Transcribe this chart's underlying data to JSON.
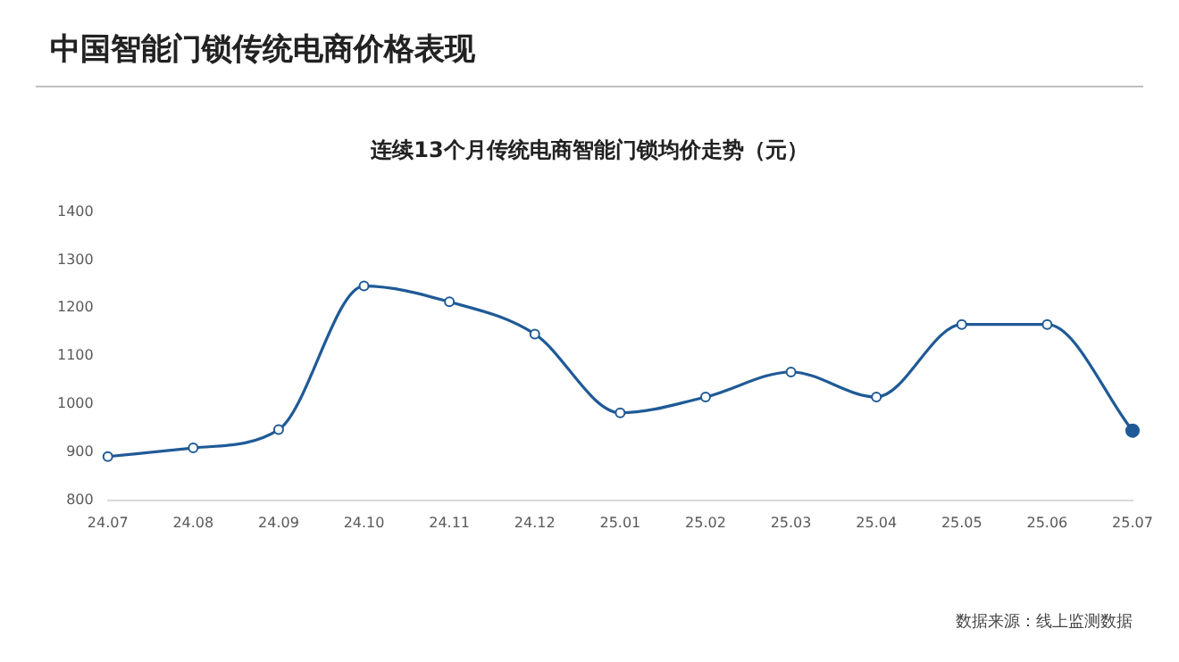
{
  "chart_data": {
    "type": "line",
    "title": "中国智能门锁传统电商价格表现",
    "subtitle": "连续13个月传统电商智能门锁均价走势（元）",
    "categories": [
      "24.07",
      "24.08",
      "24.09",
      "24.10",
      "24.11",
      "24.12",
      "25.01",
      "25.02",
      "25.03",
      "25.04",
      "25.05",
      "25.06",
      "25.07"
    ],
    "series": [
      {
        "color": "#1f5a96",
        "values": [
          891,
          909,
          947,
          1246,
          1213,
          1146,
          982,
          1015,
          1067,
          1015,
          1166,
          1166,
          945
        ]
      }
    ],
    "ylim": [
      800,
      1400
    ],
    "yticks": [
      800,
      900,
      1000,
      1100,
      1200,
      1300,
      1400
    ],
    "grid": false,
    "legend": false,
    "marker": "circle",
    "line_style": "solid",
    "annotations": [
      "数据来源：线上监测数据"
    ]
  }
}
